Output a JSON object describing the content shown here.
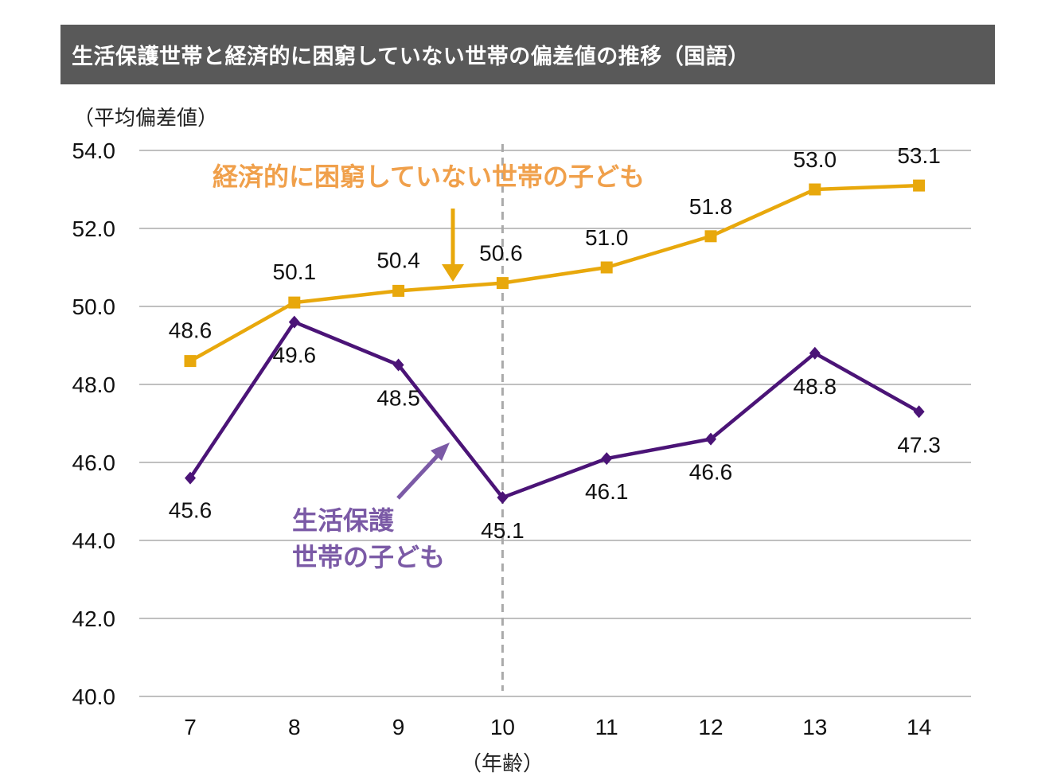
{
  "title": "生活保護世帯と経済的に困窮していない世帯の偏差値の推移（国語）",
  "colors": {
    "title_bg": "#595959",
    "series_not_poor": "#E8A80C",
    "series_welfare": "#4B1477",
    "annot_not_poor": "#F0A04B",
    "annot_welfare": "#7B5AA6",
    "grid": "#9a9a9a",
    "divider": "#aaaaaa"
  },
  "chart_data": {
    "type": "line",
    "title": "生活保護世帯と経済的に困窮していない世帯の偏差値の推移（国語）",
    "ylabel": "（平均偏差値）",
    "xlabel": "（年齢）",
    "categories": [
      "7",
      "8",
      "9",
      "10",
      "11",
      "12",
      "13",
      "14"
    ],
    "ylim": [
      40.0,
      54.0
    ],
    "yticks": [
      "40.0",
      "42.0",
      "44.0",
      "46.0",
      "48.0",
      "50.0",
      "52.0",
      "54.0"
    ],
    "grid": true,
    "divider_at": "10",
    "series": [
      {
        "name": "経済的に困窮していない世帯の子ども",
        "marker": "square",
        "values": [
          48.6,
          50.1,
          50.4,
          50.6,
          51.0,
          51.8,
          53.0,
          53.1
        ],
        "labels": [
          "48.6",
          "50.1",
          "50.4",
          "50.6",
          "51.0",
          "51.8",
          "53.0",
          "53.1"
        ]
      },
      {
        "name": "生活保護世帯の子ども",
        "marker": "diamond",
        "values": [
          45.6,
          49.6,
          48.5,
          45.1,
          46.1,
          46.6,
          48.8,
          47.3
        ],
        "labels": [
          "45.6",
          "49.6",
          "48.5",
          "45.1",
          "46.1",
          "46.6",
          "48.8",
          "47.3"
        ]
      }
    ],
    "annotations": {
      "not_poor": "経済的に困窮していない世帯の子ども",
      "welfare_line1": "生活保護",
      "welfare_line2": "世帯の子ども"
    }
  }
}
